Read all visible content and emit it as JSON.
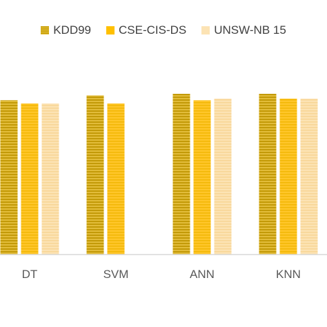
{
  "chart_data": {
    "type": "bar",
    "categories": [
      "DT",
      "SVM",
      "ANN",
      "KNN"
    ],
    "series": [
      {
        "name": "KDD99",
        "values": [
          0.96,
          0.99,
          1.0,
          1.0
        ],
        "color": "#D4AC0D",
        "pattern": "horizontal-stripes"
      },
      {
        "name": "CSE-CIS-DS",
        "values": [
          0.94,
          0.94,
          0.96,
          0.97
        ],
        "color": "#FFC000",
        "pattern": "solid"
      },
      {
        "name": "UNSW-NB 15",
        "values": [
          0.94,
          null,
          0.97,
          0.97
        ],
        "color": "#FCE3B4",
        "pattern": "solid"
      }
    ],
    "ylim": [
      0,
      1.0
    ],
    "legend_position": "top"
  }
}
